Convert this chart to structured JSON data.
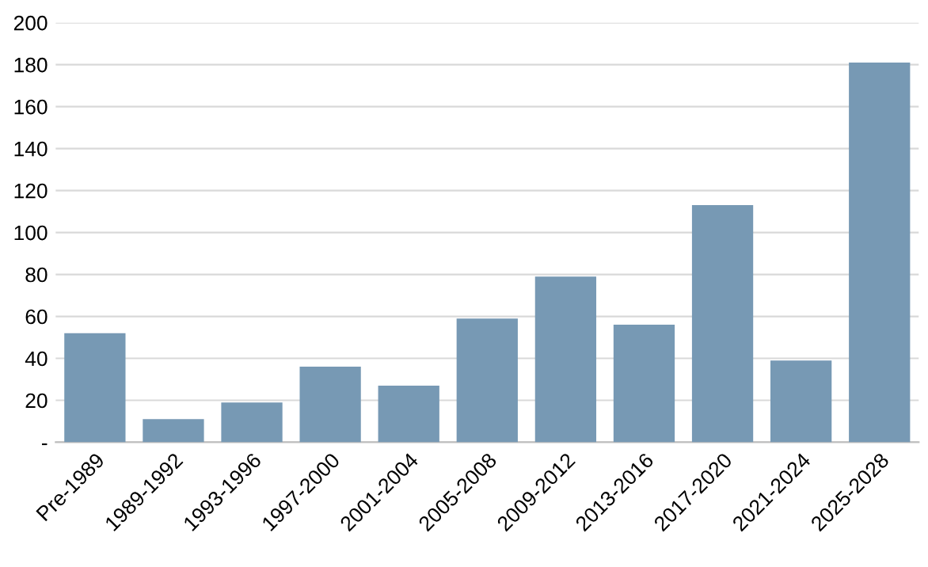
{
  "chart_data": {
    "type": "bar",
    "categories": [
      "Pre-1989",
      "1989-1992",
      "1993-1996",
      "1997-2000",
      "2001-2004",
      "2005-2008",
      "2009-2012",
      "2013-2016",
      "2017-2020",
      "2021-2024",
      "2025-2028"
    ],
    "values": [
      52,
      11,
      19,
      36,
      27,
      59,
      79,
      56,
      113,
      39,
      181
    ],
    "color": "#7799b4",
    "ylim": [
      0,
      200
    ],
    "yticks": [
      {
        "value": 0,
        "label": "-"
      },
      20,
      40,
      60,
      80,
      100,
      120,
      140,
      160,
      180,
      200
    ],
    "grid": "y"
  }
}
